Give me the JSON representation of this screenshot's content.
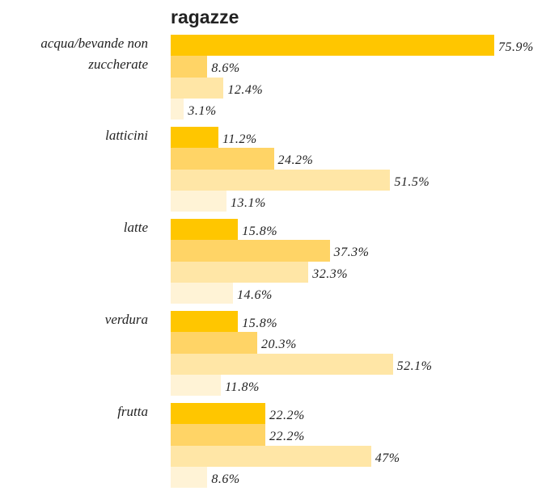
{
  "chart_data": {
    "type": "bar",
    "orientation": "horizontal",
    "title": "ragazze",
    "categories": [
      "acqua/bevande non zuccherate",
      "latticini",
      "latte",
      "verdura",
      "frutta"
    ],
    "series": [
      {
        "color": "#ffc600",
        "values": [
          75.9,
          11.2,
          15.8,
          15.8,
          22.2
        ],
        "value_labels": [
          "75.9%",
          "11.2%",
          "15.8%",
          "15.8%",
          "22.2%"
        ]
      },
      {
        "color": "#ffd466",
        "values": [
          8.6,
          24.2,
          37.3,
          20.3,
          22.2
        ],
        "value_labels": [
          "8.6%",
          "24.2%",
          "37.3%",
          "20.3%",
          "22.2%"
        ]
      },
      {
        "color": "#ffe6a6",
        "values": [
          12.4,
          51.5,
          32.3,
          52.1,
          47
        ],
        "value_labels": [
          "12.4%",
          "51.5%",
          "32.3%",
          "52.1%",
          "47%"
        ]
      },
      {
        "color": "#fff3d6",
        "values": [
          3.1,
          13.1,
          14.6,
          11.8,
          8.6
        ],
        "value_labels": [
          "3.1%",
          "13.1%",
          "14.6%",
          "11.8%",
          "8.6%"
        ]
      }
    ]
  }
}
